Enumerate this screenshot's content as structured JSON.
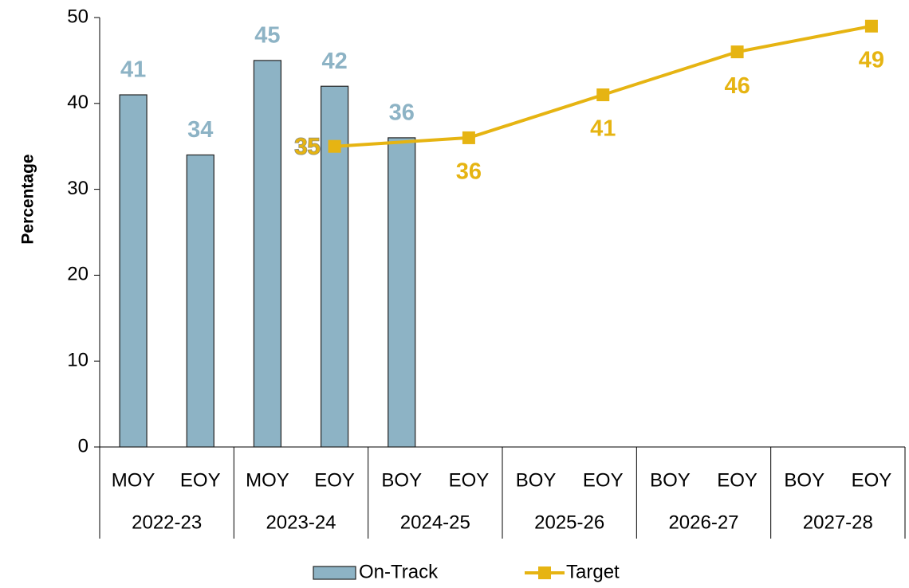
{
  "chart_data": {
    "type": "bar",
    "y_label": "Percentage",
    "categories": [
      "MOY",
      "EOY",
      "MOY",
      "EOY",
      "BOY",
      "EOY",
      "BOY",
      "EOY",
      "BOY",
      "EOY",
      "BOY",
      "EOY"
    ],
    "groups": [
      "2022-23",
      "2023-24",
      "2024-25",
      "2025-26",
      "2026-27",
      "2027-28"
    ],
    "series": [
      {
        "name": "On-Track",
        "type": "bar",
        "color": "#8db3c5",
        "label_color": "#8db3c5",
        "values": [
          41,
          34,
          45,
          42,
          36,
          null,
          null,
          null,
          null,
          null,
          null,
          null
        ]
      },
      {
        "name": "Target",
        "type": "line",
        "color": "#e6b412",
        "label_color": "#e6b412",
        "values": [
          null,
          null,
          null,
          35,
          null,
          36,
          null,
          41,
          null,
          46,
          null,
          49
        ]
      }
    ],
    "ylim": [
      0,
      50
    ],
    "yticks": [
      0,
      10,
      20,
      30,
      40,
      50
    ],
    "grid": false,
    "legend": "bottom"
  }
}
